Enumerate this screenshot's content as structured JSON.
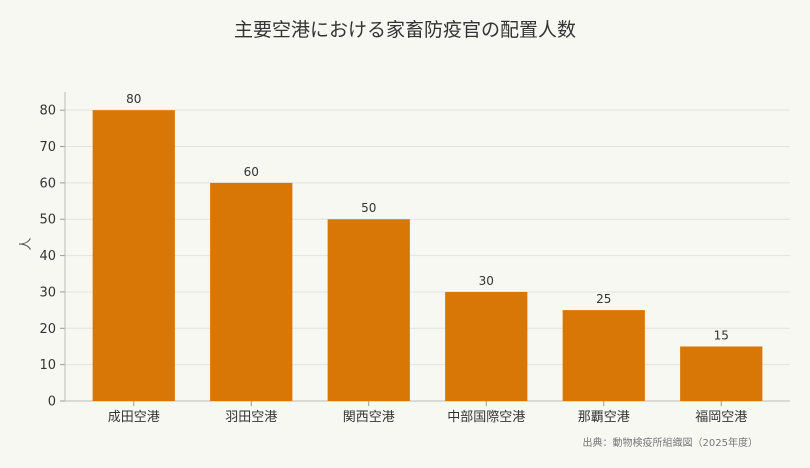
{
  "chart_data": {
    "type": "bar",
    "title": "主要空港における家畜防疫官の配置人数",
    "xlabel": "",
    "ylabel": "人",
    "categories": [
      "成田空港",
      "羽田空港",
      "関西空港",
      "中部国際空港",
      "那覇空港",
      "福岡空港"
    ],
    "values": [
      80,
      60,
      50,
      30,
      25,
      15
    ],
    "ylim": [
      0,
      85
    ],
    "yticks": [
      0,
      10,
      20,
      30,
      40,
      50,
      60,
      70,
      80
    ],
    "grid": true,
    "show_value_labels": true,
    "bar_color": "#d97706",
    "source": "出典：動物検疫所組織図（2025年度）"
  }
}
